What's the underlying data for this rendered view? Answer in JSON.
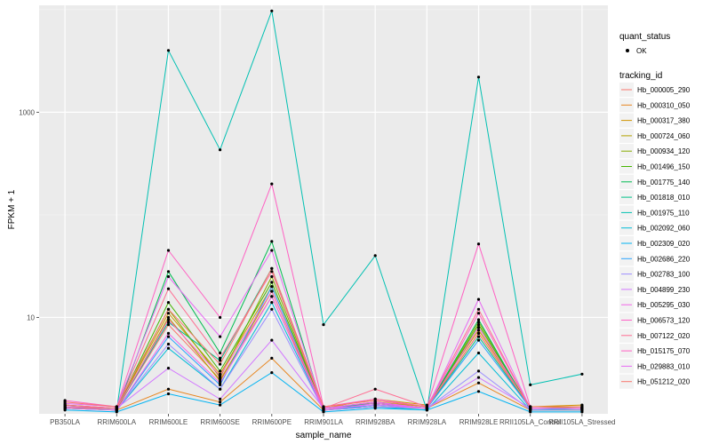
{
  "chart_data": {
    "type": "line",
    "scale_y": "log10",
    "xlabel": "sample_name",
    "ylabel": "FPKM + 1",
    "categories": [
      "PB350LA",
      "RRIM600LA",
      "RRIM600LE",
      "RRIM600SE",
      "RRIM600PE",
      "RRIM901LA",
      "RRIM928BA",
      "RRIM928LA",
      "RRIM928LE",
      "RRII105LA_Control",
      "RRII105LA_Stressed"
    ],
    "ylim": [
      1.15,
      11000
    ],
    "y_ticks": [
      10,
      1000
    ],
    "y_tick_labels": [
      "10",
      "1000"
    ],
    "grid": true,
    "legend_position": "right",
    "quant_status_legend": {
      "title": "quant_status",
      "entries": [
        "OK"
      ]
    },
    "tracking_legend_title": "tracking_id",
    "series": [
      {
        "name": "Hb_000005_290",
        "color": "#F8766D",
        "values": [
          1.4,
          1.3,
          8.5,
          2.5,
          16.0,
          1.3,
          1.45,
          1.3,
          7.0,
          1.3,
          1.3
        ]
      },
      {
        "name": "Hb_000310_050",
        "color": "#E7851E",
        "values": [
          1.35,
          1.25,
          2.0,
          1.5,
          4.0,
          1.25,
          1.35,
          1.3,
          2.3,
          1.25,
          1.25
        ]
      },
      {
        "name": "Hb_000317_380",
        "color": "#D09400",
        "values": [
          1.3,
          1.3,
          11.0,
          2.8,
          20.0,
          1.3,
          1.6,
          1.4,
          7.5,
          1.35,
          1.4
        ]
      },
      {
        "name": "Hb_000724_060",
        "color": "#B2A100",
        "values": [
          1.3,
          1.25,
          10.0,
          2.4,
          18.0,
          1.25,
          1.5,
          1.35,
          8.0,
          1.3,
          1.35
        ]
      },
      {
        "name": "Hb_000934_120",
        "color": "#89AC00",
        "values": [
          1.35,
          1.3,
          12.0,
          2.6,
          25.0,
          1.3,
          1.45,
          1.3,
          9.0,
          1.3,
          1.3
        ]
      },
      {
        "name": "Hb_001496_150",
        "color": "#45B500",
        "values": [
          1.4,
          1.3,
          14.0,
          3.0,
          22.0,
          1.3,
          1.5,
          1.3,
          8.5,
          1.3,
          1.3
        ]
      },
      {
        "name": "Hb_001775_140",
        "color": "#00BC51",
        "values": [
          1.3,
          1.25,
          28.0,
          4.5,
          55.0,
          1.25,
          1.4,
          1.3,
          9.5,
          1.25,
          1.25
        ]
      },
      {
        "name": "Hb_001818_010",
        "color": "#00C087",
        "values": [
          1.35,
          1.3,
          9.0,
          3.8,
          30.0,
          1.3,
          1.45,
          1.3,
          6.5,
          1.3,
          1.3
        ]
      },
      {
        "name": "Hb_001975_110",
        "color": "#00C0B2",
        "values": [
          1.3,
          1.25,
          4000,
          430,
          9700,
          8.5,
          40.0,
          1.25,
          2200,
          2.2,
          2.8
        ]
      },
      {
        "name": "Hb_002092_060",
        "color": "#00BCD6",
        "values": [
          1.3,
          1.25,
          5.0,
          2.0,
          14.0,
          1.25,
          1.35,
          1.25,
          4.5,
          1.25,
          1.3
        ]
      },
      {
        "name": "Hb_002309_020",
        "color": "#00B3F2",
        "values": [
          1.25,
          1.2,
          1.8,
          1.4,
          2.9,
          1.2,
          1.3,
          1.25,
          1.9,
          1.2,
          1.2
        ]
      },
      {
        "name": "Hb_002686_220",
        "color": "#29A3FF",
        "values": [
          1.3,
          1.25,
          6.5,
          2.2,
          20.0,
          1.25,
          1.4,
          1.3,
          6.0,
          1.3,
          1.3
        ]
      },
      {
        "name": "Hb_002783_100",
        "color": "#9C8DFF",
        "values": [
          1.3,
          1.25,
          5.5,
          2.0,
          12.0,
          1.25,
          1.35,
          1.3,
          3.0,
          1.25,
          1.25
        ]
      },
      {
        "name": "Hb_004899_230",
        "color": "#D277FF",
        "values": [
          1.35,
          1.3,
          3.2,
          1.6,
          6.0,
          1.3,
          1.4,
          1.3,
          2.6,
          1.3,
          1.3
        ]
      },
      {
        "name": "Hb_005295_030",
        "color": "#F166E8",
        "values": [
          1.3,
          1.25,
          7.0,
          2.3,
          16.0,
          1.25,
          1.45,
          1.3,
          8.0,
          1.3,
          1.3
        ]
      },
      {
        "name": "Hb_006573_120",
        "color": "#FF61C7",
        "values": [
          1.35,
          1.3,
          9.5,
          2.7,
          18.0,
          1.3,
          1.5,
          1.3,
          11.0,
          1.3,
          1.3
        ]
      },
      {
        "name": "Hb_007122_020",
        "color": "#FF6C91",
        "values": [
          1.4,
          1.3,
          19.0,
          4.0,
          28.0,
          1.3,
          2.0,
          1.35,
          12.0,
          1.3,
          1.3
        ]
      },
      {
        "name": "Hb_015175_070",
        "color": "#FF61C3",
        "values": [
          1.55,
          1.35,
          45.0,
          10.0,
          200,
          1.35,
          1.6,
          1.35,
          52.0,
          1.35,
          1.35
        ]
      },
      {
        "name": "Hb_029883_010",
        "color": "#E76BF3",
        "values": [
          1.45,
          1.35,
          25.0,
          6.5,
          45.0,
          1.3,
          1.5,
          1.3,
          15.0,
          1.3,
          1.3
        ]
      },
      {
        "name": "Hb_051212_020",
        "color": "#F8766D",
        "values": [
          1.5,
          1.35,
          12.0,
          3.5,
          30.0,
          1.35,
          1.55,
          1.35,
          7.0,
          1.35,
          1.35
        ]
      }
    ]
  }
}
